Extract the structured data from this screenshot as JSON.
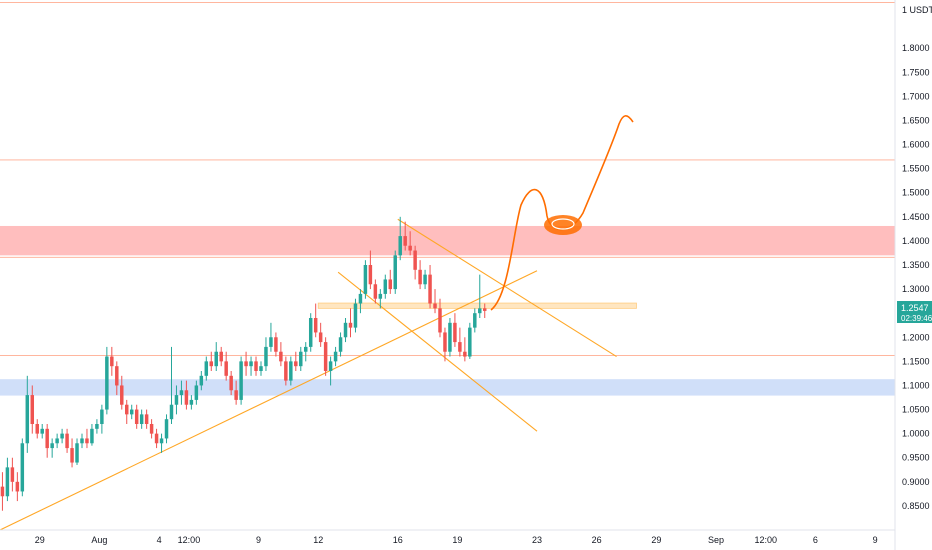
{
  "chart_data": {
    "type": "candlestick",
    "symbol_currency": "USDT",
    "y_axis": {
      "min": 0.8,
      "max": 1.9,
      "ticks": [
        "1.8000",
        "1.7500",
        "1.7000",
        "1.6500",
        "1.6000",
        "1.5500",
        "1.5000",
        "1.4500",
        "1.4000",
        "1.3500",
        "1.3000",
        "1.2500",
        "1.2000",
        "1.1500",
        "1.1000",
        "1.0500",
        "1.0000",
        "0.9500",
        "0.9000",
        "0.8500"
      ],
      "top_label": "1 USDT"
    },
    "x_axis": {
      "start": "2021-07-27",
      "end": "2021-09-10",
      "ticks": [
        {
          "label": "29",
          "date": "2021-07-29"
        },
        {
          "label": "Aug",
          "date": "2021-08-01"
        },
        {
          "label": "4",
          "date": "2021-08-04"
        },
        {
          "label": "12:00",
          "date": "2021-08-05T12:00"
        },
        {
          "label": "9",
          "date": "2021-08-09"
        },
        {
          "label": "12",
          "date": "2021-08-12"
        },
        {
          "label": "16",
          "date": "2021-08-16"
        },
        {
          "label": "19",
          "date": "2021-08-19"
        },
        {
          "label": "23",
          "date": "2021-08-23"
        },
        {
          "label": "26",
          "date": "2021-08-26"
        },
        {
          "label": "29",
          "date": "2021-08-29"
        },
        {
          "label": "Sep",
          "date": "2021-09-01"
        },
        {
          "label": "12:00",
          "date": "2021-09-03T12:00"
        },
        {
          "label": "6",
          "date": "2021-09-06"
        },
        {
          "label": "9",
          "date": "2021-09-09"
        }
      ]
    },
    "last_price": {
      "value": "1.2547",
      "countdown": "02:39:46",
      "color": "#26a69a"
    },
    "colors": {
      "up": "#26a69a",
      "down": "#ef5350",
      "red_zone": "#ffb3b3",
      "blue_zone": "#c8d9f8",
      "orange": "#ffa726",
      "drawing": "#ff6d00"
    },
    "zones": [
      {
        "name": "resistance",
        "y_from": 1.37,
        "y_to": 1.431,
        "color": "#ffb3b3"
      },
      {
        "name": "support",
        "y_from": 1.079,
        "y_to": 1.113,
        "color": "#c8d9f8"
      },
      {
        "name": "mid",
        "y_from": 1.26,
        "y_to": 1.271,
        "date_from": "2021-08-12",
        "date_to": "2021-08-28",
        "color": "#ffe0b2"
      }
    ],
    "horizontal_lines": [
      1.895,
      1.568,
      1.366,
      1.162
    ],
    "trend_lines": [
      {
        "from": [
          "2021-07-27",
          0.8
        ],
        "to": [
          "2021-08-23",
          1.338
        ]
      },
      {
        "from": [
          "2021-08-16",
          1.445
        ],
        "to": [
          "2021-08-27",
          1.16
        ]
      },
      {
        "from": [
          "2021-08-13",
          1.335
        ],
        "to": [
          "2021-08-23",
          1.005
        ]
      }
    ],
    "candles": [
      [
        "2021-07-27T00:00",
        0.89,
        0.92,
        0.84,
        0.87
      ],
      [
        "2021-07-27T06:00",
        0.87,
        0.95,
        0.86,
        0.93
      ],
      [
        "2021-07-27T12:00",
        0.93,
        0.95,
        0.88,
        0.9
      ],
      [
        "2021-07-27T18:00",
        0.9,
        0.92,
        0.86,
        0.88
      ],
      [
        "2021-07-28T00:00",
        0.88,
        0.99,
        0.87,
        0.98
      ],
      [
        "2021-07-28T06:00",
        0.98,
        1.12,
        0.96,
        1.08
      ],
      [
        "2021-07-28T12:00",
        1.08,
        1.1,
        1.0,
        1.02
      ],
      [
        "2021-07-28T18:00",
        1.02,
        1.03,
        0.99,
        1.0
      ],
      [
        "2021-07-29T00:00",
        1.0,
        1.02,
        0.99,
        1.01
      ],
      [
        "2021-07-29T06:00",
        1.01,
        1.02,
        0.95,
        0.97
      ],
      [
        "2021-07-29T12:00",
        0.97,
        0.99,
        0.95,
        0.98
      ],
      [
        "2021-07-29T18:00",
        0.98,
        1.0,
        0.97,
        0.99
      ],
      [
        "2021-07-30T00:00",
        0.99,
        1.01,
        0.98,
        1.0
      ],
      [
        "2021-07-30T06:00",
        1.0,
        1.01,
        0.96,
        0.97
      ],
      [
        "2021-07-30T12:00",
        0.97,
        0.99,
        0.93,
        0.94
      ],
      [
        "2021-07-30T18:00",
        0.94,
        0.99,
        0.935,
        0.98
      ],
      [
        "2021-07-31T00:00",
        0.98,
        1.0,
        0.97,
        0.99
      ],
      [
        "2021-07-31T06:00",
        0.99,
        1.01,
        0.97,
        0.98
      ],
      [
        "2021-07-31T12:00",
        0.98,
        1.02,
        0.975,
        1.01
      ],
      [
        "2021-07-31T18:00",
        1.01,
        1.03,
        1.0,
        1.02
      ],
      [
        "2021-08-01T00:00",
        1.02,
        1.06,
        1.0,
        1.05
      ],
      [
        "2021-08-01T06:00",
        1.05,
        1.18,
        1.04,
        1.16
      ],
      [
        "2021-08-01T12:00",
        1.16,
        1.18,
        1.12,
        1.14
      ],
      [
        "2021-08-01T18:00",
        1.14,
        1.15,
        1.08,
        1.1
      ],
      [
        "2021-08-02T00:00",
        1.1,
        1.12,
        1.05,
        1.06
      ],
      [
        "2021-08-02T06:00",
        1.06,
        1.07,
        1.02,
        1.04
      ],
      [
        "2021-08-02T12:00",
        1.04,
        1.06,
        1.03,
        1.05
      ],
      [
        "2021-08-02T18:00",
        1.05,
        1.06,
        1.01,
        1.02
      ],
      [
        "2021-08-03T00:00",
        1.02,
        1.05,
        1.01,
        1.04
      ],
      [
        "2021-08-03T06:00",
        1.04,
        1.05,
        1.01,
        1.02
      ],
      [
        "2021-08-03T12:00",
        1.02,
        1.03,
        0.99,
        1.0
      ],
      [
        "2021-08-03T18:00",
        1.0,
        1.01,
        0.97,
        0.98
      ],
      [
        "2021-08-04T00:00",
        0.98,
        1.0,
        0.96,
        0.99
      ],
      [
        "2021-08-04T06:00",
        0.99,
        1.04,
        0.98,
        1.03
      ],
      [
        "2021-08-04T12:00",
        1.03,
        1.18,
        1.02,
        1.06
      ],
      [
        "2021-08-04T18:00",
        1.06,
        1.1,
        1.04,
        1.08
      ],
      [
        "2021-08-05T00:00",
        1.08,
        1.11,
        1.06,
        1.09
      ],
      [
        "2021-08-05T06:00",
        1.09,
        1.11,
        1.05,
        1.06
      ],
      [
        "2021-08-05T12:00",
        1.06,
        1.08,
        1.05,
        1.07
      ],
      [
        "2021-08-05T18:00",
        1.07,
        1.11,
        1.06,
        1.1
      ],
      [
        "2021-08-06T00:00",
        1.1,
        1.13,
        1.09,
        1.12
      ],
      [
        "2021-08-06T06:00",
        1.12,
        1.16,
        1.11,
        1.15
      ],
      [
        "2021-08-06T12:00",
        1.15,
        1.17,
        1.13,
        1.14
      ],
      [
        "2021-08-06T18:00",
        1.14,
        1.19,
        1.13,
        1.17
      ],
      [
        "2021-08-07T00:00",
        1.17,
        1.18,
        1.14,
        1.15
      ],
      [
        "2021-08-07T06:00",
        1.15,
        1.17,
        1.11,
        1.12
      ],
      [
        "2021-08-07T12:00",
        1.12,
        1.13,
        1.08,
        1.09
      ],
      [
        "2021-08-07T18:00",
        1.09,
        1.11,
        1.06,
        1.07
      ],
      [
        "2021-08-08T00:00",
        1.07,
        1.16,
        1.06,
        1.15
      ],
      [
        "2021-08-08T06:00",
        1.15,
        1.17,
        1.12,
        1.14
      ],
      [
        "2021-08-08T12:00",
        1.14,
        1.16,
        1.12,
        1.15
      ],
      [
        "2021-08-08T18:00",
        1.15,
        1.16,
        1.12,
        1.13
      ],
      [
        "2021-08-09T00:00",
        1.13,
        1.15,
        1.12,
        1.14
      ],
      [
        "2021-08-09T06:00",
        1.14,
        1.2,
        1.13,
        1.18
      ],
      [
        "2021-08-09T12:00",
        1.18,
        1.23,
        1.17,
        1.2
      ],
      [
        "2021-08-09T18:00",
        1.2,
        1.21,
        1.16,
        1.17
      ],
      [
        "2021-08-10T00:00",
        1.17,
        1.19,
        1.14,
        1.15
      ],
      [
        "2021-08-10T06:00",
        1.15,
        1.16,
        1.1,
        1.11
      ],
      [
        "2021-08-10T12:00",
        1.11,
        1.16,
        1.1,
        1.15
      ],
      [
        "2021-08-10T18:00",
        1.15,
        1.17,
        1.13,
        1.14
      ],
      [
        "2021-08-11T00:00",
        1.14,
        1.18,
        1.13,
        1.17
      ],
      [
        "2021-08-11T06:00",
        1.17,
        1.19,
        1.15,
        1.18
      ],
      [
        "2021-08-11T12:00",
        1.18,
        1.25,
        1.17,
        1.24
      ],
      [
        "2021-08-11T18:00",
        1.24,
        1.27,
        1.2,
        1.21
      ],
      [
        "2021-08-12T00:00",
        1.21,
        1.23,
        1.18,
        1.19
      ],
      [
        "2021-08-12T06:00",
        1.19,
        1.2,
        1.12,
        1.13
      ],
      [
        "2021-08-12T12:00",
        1.13,
        1.16,
        1.1,
        1.15
      ],
      [
        "2021-08-12T18:00",
        1.15,
        1.18,
        1.14,
        1.17
      ],
      [
        "2021-08-13T00:00",
        1.17,
        1.21,
        1.16,
        1.2
      ],
      [
        "2021-08-13T06:00",
        1.2,
        1.24,
        1.19,
        1.23
      ],
      [
        "2021-08-13T12:00",
        1.23,
        1.26,
        1.2,
        1.22
      ],
      [
        "2021-08-13T18:00",
        1.22,
        1.28,
        1.21,
        1.27
      ],
      [
        "2021-08-14T00:00",
        1.27,
        1.3,
        1.25,
        1.29
      ],
      [
        "2021-08-14T06:00",
        1.29,
        1.36,
        1.28,
        1.35
      ],
      [
        "2021-08-14T12:00",
        1.35,
        1.38,
        1.3,
        1.31
      ],
      [
        "2021-08-14T18:00",
        1.31,
        1.32,
        1.27,
        1.28
      ],
      [
        "2021-08-15T00:00",
        1.28,
        1.3,
        1.26,
        1.29
      ],
      [
        "2021-08-15T06:00",
        1.29,
        1.33,
        1.28,
        1.32
      ],
      [
        "2021-08-15T12:00",
        1.32,
        1.34,
        1.29,
        1.3
      ],
      [
        "2021-08-15T18:00",
        1.3,
        1.38,
        1.29,
        1.37
      ],
      [
        "2021-08-16T00:00",
        1.37,
        1.45,
        1.36,
        1.41
      ],
      [
        "2021-08-16T06:00",
        1.41,
        1.44,
        1.38,
        1.39
      ],
      [
        "2021-08-16T12:00",
        1.39,
        1.42,
        1.37,
        1.38
      ],
      [
        "2021-08-16T18:00",
        1.38,
        1.39,
        1.32,
        1.34
      ],
      [
        "2021-08-17T00:00",
        1.34,
        1.36,
        1.3,
        1.31
      ],
      [
        "2021-08-17T06:00",
        1.31,
        1.34,
        1.3,
        1.33
      ],
      [
        "2021-08-17T12:00",
        1.33,
        1.35,
        1.26,
        1.27
      ],
      [
        "2021-08-17T18:00",
        1.27,
        1.3,
        1.25,
        1.26
      ],
      [
        "2021-08-18T00:00",
        1.26,
        1.28,
        1.2,
        1.21
      ],
      [
        "2021-08-18T06:00",
        1.21,
        1.22,
        1.15,
        1.17
      ],
      [
        "2021-08-18T12:00",
        1.17,
        1.24,
        1.16,
        1.23
      ],
      [
        "2021-08-18T18:00",
        1.23,
        1.25,
        1.18,
        1.19
      ],
      [
        "2021-08-19T00:00",
        1.19,
        1.22,
        1.16,
        1.17
      ],
      [
        "2021-08-19T06:00",
        1.17,
        1.2,
        1.15,
        1.16
      ],
      [
        "2021-08-19T12:00",
        1.16,
        1.23,
        1.155,
        1.22
      ],
      [
        "2021-08-19T18:00",
        1.22,
        1.26,
        1.21,
        1.25
      ],
      [
        "2021-08-20T00:00",
        1.25,
        1.33,
        1.24,
        1.26
      ],
      [
        "2021-08-20T06:00",
        1.26,
        1.27,
        1.24,
        1.2547
      ]
    ]
  }
}
